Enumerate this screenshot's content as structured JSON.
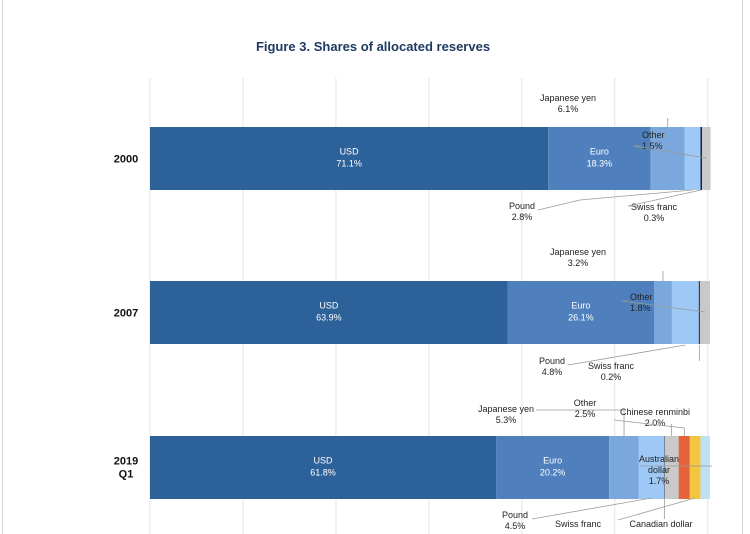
{
  "chart_data": {
    "type": "bar",
    "orientation": "horizontal-stacked",
    "title": "Figure 3. Shares of allocated reserves",
    "xlabel": "",
    "ylabel": "",
    "xlim": [
      0,
      100
    ],
    "grid": true,
    "categories": [
      {
        "label": "2000",
        "label_line2": ""
      },
      {
        "label": "2007",
        "label_line2": ""
      },
      {
        "label": "2019",
        "label_line2": "Q1"
      }
    ],
    "colors": {
      "usd": "#2d6199",
      "euro": "#4f80bd",
      "yen": "#7aa8dd",
      "pound": "#9ec8f5",
      "swiss": "#0d2a4a",
      "other": "#c9c9c9",
      "renminbi": "#e5633a",
      "cad": "#f2c641",
      "aud": "#bfe1f4"
    },
    "series": [
      {
        "category": "2000",
        "segments": [
          {
            "key": "usd",
            "value": 71.1,
            "label": "USD",
            "value_label": "71.1%"
          },
          {
            "key": "euro",
            "value": 18.3,
            "label": "Euro",
            "value_label": "18.3%"
          },
          {
            "key": "yen",
            "value": 6.1,
            "label": "Japanese yen",
            "value_label": "6.1%"
          },
          {
            "key": "pound",
            "value": 2.8,
            "label": "Pound",
            "value_label": "2.8%"
          },
          {
            "key": "swiss",
            "value": 0.3,
            "label": "Swiss franc",
            "value_label": "0.3%"
          },
          {
            "key": "other",
            "value": 1.5,
            "label": "Other",
            "value_label": "1.5%"
          }
        ]
      },
      {
        "category": "2007",
        "segments": [
          {
            "key": "usd",
            "value": 63.9,
            "label": "USD",
            "value_label": "63.9%"
          },
          {
            "key": "euro",
            "value": 26.1,
            "label": "Euro",
            "value_label": "26.1%"
          },
          {
            "key": "yen",
            "value": 3.2,
            "label": "Japanese yen",
            "value_label": "3.2%"
          },
          {
            "key": "pound",
            "value": 4.8,
            "label": "Pound",
            "value_label": "4.8%"
          },
          {
            "key": "swiss",
            "value": 0.2,
            "label": "Swiss franc",
            "value_label": "0.2%"
          },
          {
            "key": "other",
            "value": 1.8,
            "label": "Other",
            "value_label": "1.8%"
          }
        ]
      },
      {
        "category": "2019 Q1",
        "segments": [
          {
            "key": "usd",
            "value": 61.8,
            "label": "USD",
            "value_label": "61.8%"
          },
          {
            "key": "euro",
            "value": 20.2,
            "label": "Euro",
            "value_label": "20.2%"
          },
          {
            "key": "yen",
            "value": 5.3,
            "label": "Japanese yen",
            "value_label": "5.3%"
          },
          {
            "key": "pound",
            "value": 4.5,
            "label": "Pound",
            "value_label": "4.5%"
          },
          {
            "key": "swiss",
            "value": 0.1,
            "label": "Swiss franc",
            "value_label": ""
          },
          {
            "key": "other",
            "value": 2.5,
            "label": "Other",
            "value_label": "2.5%"
          },
          {
            "key": "renminbi",
            "value": 2.0,
            "label": "Chinese renminbi",
            "value_label": "2.0%"
          },
          {
            "key": "cad",
            "value": 1.9,
            "label": "Canadian dollar",
            "value_label": ""
          },
          {
            "key": "aud",
            "value": 1.7,
            "label": "Australian dollar",
            "value_label": "1.7%"
          }
        ]
      }
    ]
  }
}
